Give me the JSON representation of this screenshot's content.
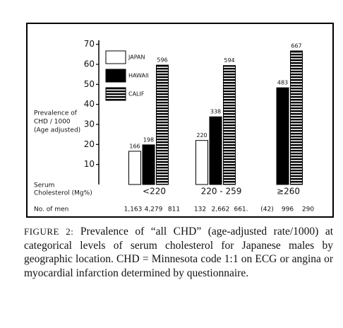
{
  "chart_data": {
    "type": "bar",
    "y_label": [
      "Prevalence of",
      "CHD / 1000",
      "(Age adjusted)"
    ],
    "x_label": [
      "Serum",
      "Cholesterol (Mg%)"
    ],
    "categories": [
      "<220",
      "220 - 259",
      "≥260"
    ],
    "series": [
      {
        "name": "JAPAN",
        "color": "#ffffff",
        "values": [
          16.6,
          22.0,
          null
        ],
        "value_labels": [
          "166",
          "220",
          null
        ]
      },
      {
        "name": "HAWAII",
        "color": "#000000",
        "values": [
          19.8,
          33.8,
          48.3
        ],
        "value_labels": [
          "198",
          "338",
          "483"
        ]
      },
      {
        "name": "CALIF",
        "color": "striped",
        "values": [
          59.6,
          59.4,
          66.7
        ],
        "value_labels": [
          "596",
          "594",
          "667"
        ]
      }
    ],
    "ylim": [
      0,
      72
    ],
    "yticks": [
      10,
      20,
      30,
      40,
      50,
      60,
      70
    ],
    "grid": false,
    "legend": "upper left",
    "men_label": "No. of men",
    "men_counts": [
      [
        "1,163",
        "4,279",
        "811"
      ],
      [
        "132",
        "2,662",
        "661."
      ],
      [
        "(42)",
        "996",
        "290"
      ]
    ]
  },
  "caption": {
    "label": "FIGURE 2:",
    "text": "Prevalence of “all CHD” (age-adjusted rate/1000) at categorical levels of serum cholesterol for Japanese males by geographic location. CHD = Minnesota code 1:1 on ECG or angina or myocardial infarction determined by questionnaire."
  }
}
